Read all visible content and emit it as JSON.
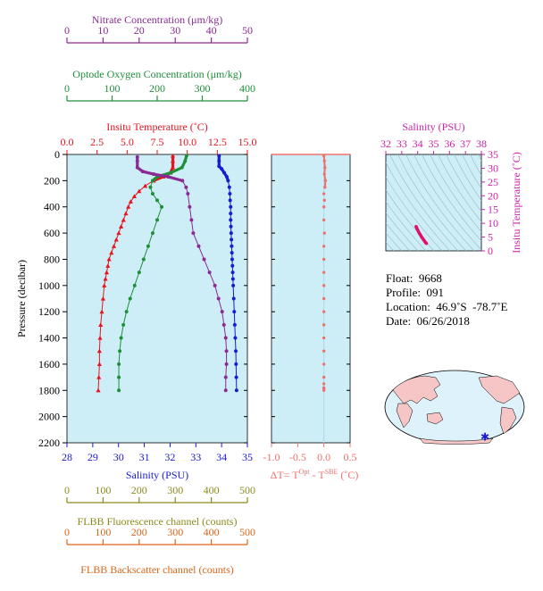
{
  "colors": {
    "temperature": "#e8141e",
    "salinity": "#1a1ad2",
    "oxygen": "#1f8f3a",
    "nitrate": "#8b2a94",
    "fluorescence": "#8a8a1e",
    "backscatter": "#d9661a",
    "delta_t": "#f07070",
    "ts_axis": "#cc22aa",
    "plot_bg": "#cdeef7"
  },
  "axes": {
    "nitrate": {
      "title": "Nitrate Concentration (μm/kg)",
      "ticks": [
        "0",
        "10",
        "20",
        "30",
        "40",
        "50"
      ]
    },
    "oxygen": {
      "title": "Optode Oxygen Concentration (μm/kg)",
      "ticks": [
        "0",
        "100",
        "200",
        "300",
        "400"
      ]
    },
    "temperature": {
      "title": "Insitu Temperature (˚C)",
      "ticks": [
        "0.0",
        "2.5",
        "5.0",
        "7.5",
        "10.0",
        "12.5",
        "15.0"
      ]
    },
    "pressure": {
      "title": "Pressure (decibar)",
      "ticks": [
        "0",
        "200",
        "400",
        "600",
        "800",
        "1000",
        "1200",
        "1400",
        "1600",
        "1800",
        "2000",
        "2200"
      ]
    },
    "salinity": {
      "title": "Salinity (PSU)",
      "ticks": [
        "28",
        "29",
        "30",
        "31",
        "32",
        "33",
        "34",
        "35"
      ]
    },
    "delta_t": {
      "ticks": [
        "-1.0",
        "-0.5",
        "0.0",
        "0.5"
      ],
      "title_prefix": "ΔT= T",
      "sup1": "Opt",
      "mid": " - T",
      "sup2": "SBE",
      "suffix": " (˚C)"
    },
    "fluorescence": {
      "title": "FLBB Fluorescence channel (counts)",
      "ticks": [
        "0",
        "100",
        "200",
        "300",
        "400",
        "500"
      ]
    },
    "backscatter": {
      "title": "FLBB Backscatter channel (counts)",
      "ticks": [
        "0",
        "100",
        "200",
        "300",
        "400",
        "500"
      ]
    },
    "ts_salinity": {
      "title": "Salinity (PSU)",
      "ticks": [
        "32",
        "33",
        "34",
        "35",
        "36",
        "37",
        "38"
      ]
    },
    "ts_temperature": {
      "title": "Insitu Temperature (˚C)",
      "ticks": [
        "0",
        "5",
        "10",
        "15",
        "20",
        "25",
        "30",
        "35"
      ]
    }
  },
  "info": {
    "float": "Float:  9668",
    "profile": "Profile:  091",
    "location": "Location:  46.9˚S  -78.7˚E",
    "date": "Date:  06/26/2018"
  },
  "map": {
    "marker_label": "float position"
  },
  "chart_data": [
    {
      "type": "line",
      "name": "profiles",
      "ylabel": "Pressure (decibar)",
      "ylim": [
        2200,
        0
      ],
      "grid": false,
      "series": [
        {
          "name": "Insitu Temperature (˚C)",
          "axis": "temperature",
          "xlim": [
            0,
            15
          ],
          "points": [
            [
              8.8,
              10
            ],
            [
              8.8,
              50
            ],
            [
              8.8,
              100
            ],
            [
              8.6,
              140
            ],
            [
              8.0,
              170
            ],
            [
              7.2,
              200
            ],
            [
              6.5,
              240
            ],
            [
              6.0,
              280
            ],
            [
              5.6,
              320
            ],
            [
              5.3,
              360
            ],
            [
              5.1,
              400
            ],
            [
              4.9,
              450
            ],
            [
              4.7,
              500
            ],
            [
              4.5,
              550
            ],
            [
              4.3,
              600
            ],
            [
              4.1,
              650
            ],
            [
              3.9,
              700
            ],
            [
              3.7,
              750
            ],
            [
              3.5,
              800
            ],
            [
              3.4,
              850
            ],
            [
              3.3,
              900
            ],
            [
              3.2,
              950
            ],
            [
              3.1,
              1000
            ],
            [
              3.0,
              1100
            ],
            [
              2.9,
              1200
            ],
            [
              2.8,
              1300
            ],
            [
              2.75,
              1400
            ],
            [
              2.7,
              1500
            ],
            [
              2.7,
              1600
            ],
            [
              2.65,
              1700
            ],
            [
              2.6,
              1800
            ]
          ]
        },
        {
          "name": "Salinity (PSU)",
          "axis": "salinity",
          "xlim": [
            28,
            35
          ],
          "points": [
            [
              33.9,
              10
            ],
            [
              33.9,
              50
            ],
            [
              33.9,
              90
            ],
            [
              34.0,
              110
            ],
            [
              34.1,
              140
            ],
            [
              34.2,
              170
            ],
            [
              34.25,
              200
            ],
            [
              34.3,
              250
            ],
            [
              34.32,
              300
            ],
            [
              34.33,
              350
            ],
            [
              34.35,
              400
            ],
            [
              34.35,
              450
            ],
            [
              34.35,
              500
            ],
            [
              34.36,
              550
            ],
            [
              34.37,
              600
            ],
            [
              34.38,
              650
            ],
            [
              34.39,
              700
            ],
            [
              34.4,
              750
            ],
            [
              34.41,
              800
            ],
            [
              34.42,
              850
            ],
            [
              34.43,
              900
            ],
            [
              34.44,
              950
            ],
            [
              34.45,
              1000
            ],
            [
              34.47,
              1100
            ],
            [
              34.49,
              1200
            ],
            [
              34.51,
              1300
            ],
            [
              34.53,
              1400
            ],
            [
              34.55,
              1500
            ],
            [
              34.56,
              1600
            ],
            [
              34.57,
              1700
            ],
            [
              34.58,
              1800
            ]
          ]
        },
        {
          "name": "Optode Oxygen Concentration (μm/kg)",
          "axis": "oxygen",
          "xlim": [
            0,
            400
          ],
          "points": [
            [
              265,
              10
            ],
            [
              262,
              50
            ],
            [
              255,
              100
            ],
            [
              230,
              140
            ],
            [
              200,
              170
            ],
            [
              190,
              200
            ],
            [
              185,
              250
            ],
            [
              190,
              300
            ],
            [
              200,
              350
            ],
            [
              210,
              400
            ],
            [
              200,
              500
            ],
            [
              190,
              600
            ],
            [
              180,
              700
            ],
            [
              170,
              800
            ],
            [
              160,
              900
            ],
            [
              150,
              1000
            ],
            [
              140,
              1100
            ],
            [
              132,
              1200
            ],
            [
              125,
              1300
            ],
            [
              120,
              1400
            ],
            [
              117,
              1500
            ],
            [
              115,
              1600
            ],
            [
              115,
              1700
            ],
            [
              115,
              1800
            ]
          ]
        },
        {
          "name": "Nitrate Concentration (μm/kg)",
          "axis": "nitrate",
          "xlim": [
            0,
            50
          ],
          "points": [
            [
              19.5,
              20
            ],
            [
              19.5,
              50
            ],
            [
              19.5,
              100
            ],
            [
              21,
              130
            ],
            [
              24,
              150
            ],
            [
              28,
              170
            ],
            [
              32,
              200
            ],
            [
              33,
              250
            ],
            [
              33.5,
              300
            ],
            [
              34,
              400
            ],
            [
              34.5,
              500
            ],
            [
              35,
              600
            ],
            [
              36.5,
              700
            ],
            [
              38,
              800
            ],
            [
              39.5,
              900
            ],
            [
              41,
              1000
            ],
            [
              42,
              1100
            ],
            [
              43,
              1200
            ],
            [
              43.5,
              1300
            ],
            [
              44,
              1400
            ],
            [
              44.2,
              1500
            ],
            [
              44.2,
              1600
            ],
            [
              44,
              1700
            ],
            [
              44,
              1800
            ]
          ]
        }
      ]
    },
    {
      "type": "scatter",
      "name": "delta_t",
      "xlabel": "ΔT= T Opt - T SBE (˚C)",
      "xlim": [
        -1.0,
        0.5
      ],
      "ylim": [
        2200,
        0
      ],
      "x": [
        0.0,
        0.01,
        0.02,
        0.01,
        0.03,
        0.02,
        0.0,
        0.01,
        0.0,
        0.0,
        0.01,
        0.0,
        0.0,
        0.0,
        0.0,
        0.0,
        0.0,
        0.0,
        0.0,
        0.0,
        0.0,
        0.0,
        0.0,
        0.0,
        0.0,
        0.0
      ],
      "y": [
        10,
        50,
        100,
        150,
        200,
        250,
        300,
        350,
        400,
        500,
        600,
        700,
        800,
        900,
        1000,
        1100,
        1200,
        1300,
        1400,
        1500,
        1600,
        1700,
        1750,
        1800,
        1780,
        1790
      ]
    },
    {
      "type": "scatter",
      "name": "ts_diagram",
      "xlabel": "Salinity (PSU)",
      "ylabel": "Insitu Temperature (˚C)",
      "xlim": [
        32,
        38
      ],
      "ylim": [
        0,
        35
      ],
      "x": [
        33.9,
        33.92,
        33.95,
        34.0,
        34.05,
        34.1,
        34.15,
        34.2,
        34.25,
        34.3,
        34.35,
        34.4,
        34.45,
        34.5,
        34.55
      ],
      "y": [
        8.8,
        8.6,
        8.2,
        7.6,
        7.0,
        6.4,
        6.0,
        5.5,
        5.0,
        4.6,
        4.2,
        3.8,
        3.4,
        3.0,
        2.7
      ]
    }
  ]
}
